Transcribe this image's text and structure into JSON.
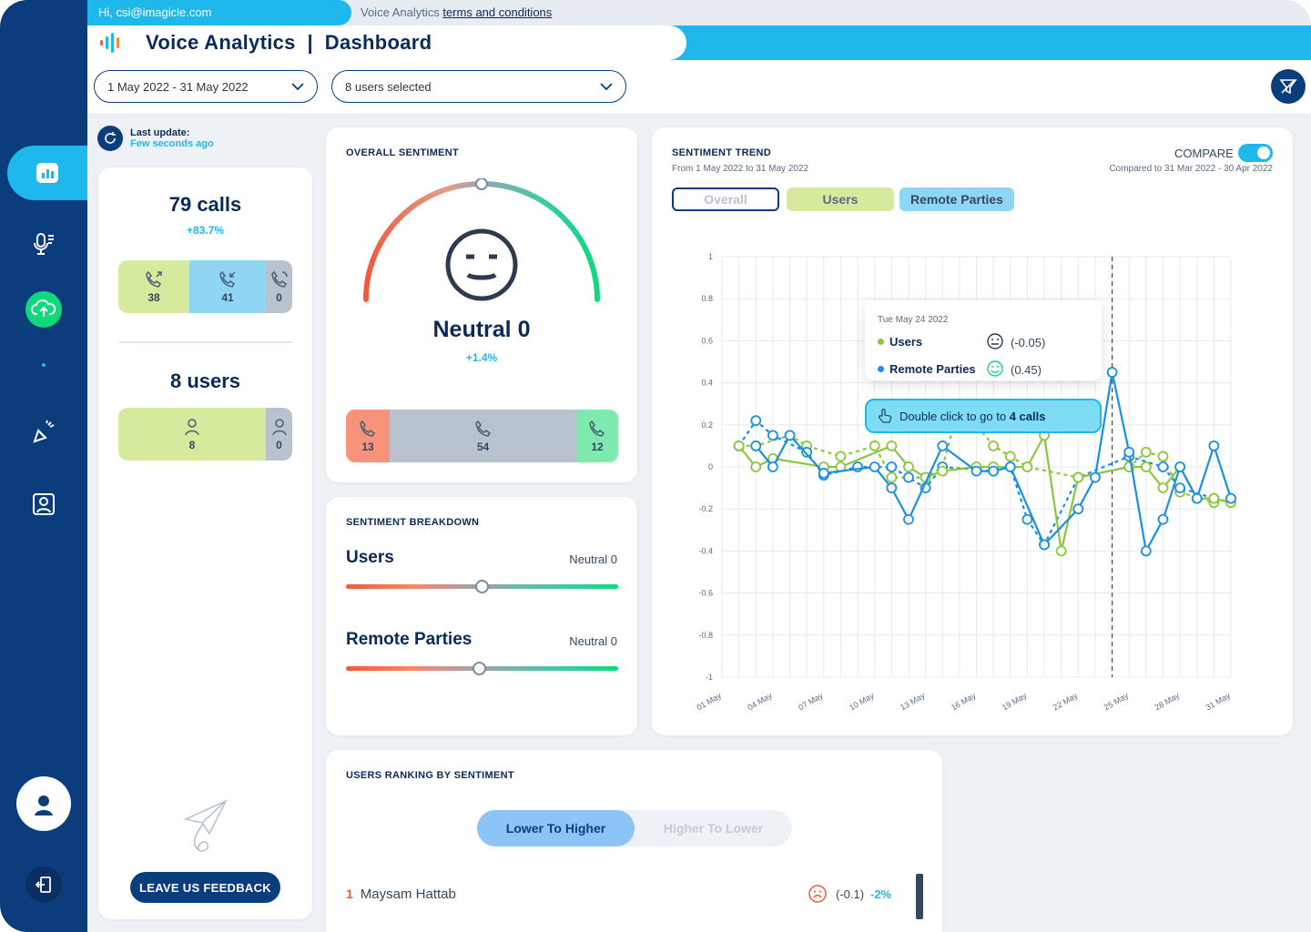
{
  "header": {
    "greeting": "Hi, csi@imagicle.com",
    "terms_prefix": "Voice Analytics ",
    "terms_link": "terms and conditions",
    "title": "Voice Analytics  |  Dashboard"
  },
  "filters": {
    "date_range": "1 May 2022 - 31 May 2022",
    "users": "8 users selected"
  },
  "sidebar": {
    "items": [
      {
        "name": "dashboard",
        "icon": "bar-chart-icon",
        "active": true
      },
      {
        "name": "transcriptions",
        "icon": "mic-list-icon"
      },
      {
        "name": "upload",
        "icon": "cloud-upload-icon"
      },
      {
        "name": "alerts",
        "icon": "megaphone-icon"
      },
      {
        "name": "contacts",
        "icon": "contact-card-icon"
      }
    ]
  },
  "summary": {
    "last_update_label": "Last update:",
    "last_update_value": "Few seconds ago",
    "calls_total": "79 calls",
    "calls_delta": "+83.7%",
    "calls_outgoing": "38",
    "calls_incoming": "41",
    "calls_other": "0",
    "users_total": "8 users",
    "users_active": "8",
    "users_inactive": "0",
    "feedback_label": "LEAVE US FEEDBACK"
  },
  "overall": {
    "title": "OVERALL SENTIMENT",
    "label": "Neutral 0",
    "delta": "+1.4%",
    "gauge_value": 0,
    "negative": "13",
    "neutral": "54",
    "positive": "12"
  },
  "breakdown": {
    "title": "SENTIMENT BREAKDOWN",
    "rows": [
      {
        "name": "Users",
        "value_label": "Neutral 0",
        "value": 0
      },
      {
        "name": "Remote Parties",
        "value_label": "Neutral 0",
        "value": -0.02
      }
    ]
  },
  "trend": {
    "title": "SENTIMENT TREND",
    "subtitle": "From 1 May 2022 to 31 May 2022",
    "compare_label": "COMPARE",
    "compare_sub": "Compared to 31 Mar 2022 - 30 Apr 2022",
    "tabs": [
      "Overall",
      "Users",
      "Remote Parties"
    ],
    "tooltip": {
      "date": "Tue May 24 2022",
      "users_label": "Users",
      "users_value": "(-0.05)",
      "remote_label": "Remote Parties",
      "remote_value": "(0.45)",
      "action_prefix": "Double click to go to ",
      "action_count": "4 calls"
    }
  },
  "chart_data": {
    "type": "line",
    "title": "SENTIMENT TREND",
    "ylim": [
      -1,
      1
    ],
    "yticks": [
      "1",
      "0.8",
      "0.6",
      "0.4",
      "0.2",
      "0",
      "-0.2",
      "-0.4",
      "-0.6",
      "-0.8",
      "-1"
    ],
    "x_labels": [
      "01 May",
      "04 May",
      "07 May",
      "10 May",
      "13 May",
      "16 May",
      "19 May",
      "22 May",
      "25 May",
      "28 May",
      "31 May"
    ],
    "x_count": 31,
    "highlight_day": 24,
    "series": [
      {
        "name": "Users",
        "color": "#8cc63f",
        "style": "solid",
        "x": [
          2,
          3,
          4,
          7,
          8,
          11,
          12,
          13,
          14,
          16,
          17,
          19,
          20,
          21,
          22,
          25,
          26,
          27,
          28,
          29,
          30,
          31
        ],
        "values": [
          0.1,
          0.0,
          0.04,
          0.0,
          0.0,
          0.1,
          0.0,
          -0.05,
          -0.02,
          0.0,
          0.0,
          0.0,
          0.15,
          -0.4,
          -0.05,
          0.0,
          0.0,
          -0.1,
          0.0,
          -0.15,
          -0.15,
          -0.17
        ]
      },
      {
        "name": "Remote Parties",
        "color": "#1a8fe3",
        "style": "solid",
        "x": [
          3,
          4,
          5,
          7,
          10,
          11,
          12,
          14,
          16,
          17,
          18,
          20,
          22,
          23,
          24,
          25,
          26,
          27,
          28,
          29,
          30,
          31
        ],
        "values": [
          0.1,
          0.0,
          0.15,
          -0.03,
          0.0,
          -0.1,
          -0.25,
          0.1,
          -0.02,
          -0.02,
          0.0,
          -0.37,
          -0.2,
          -0.05,
          0.45,
          0.07,
          -0.4,
          -0.25,
          0.0,
          -0.15,
          0.1,
          -0.15
        ]
      },
      {
        "name": "Users (compare)",
        "color": "#8cc63f",
        "style": "dashed",
        "x": [
          2,
          3,
          5,
          6,
          8,
          10,
          11,
          13,
          14,
          15,
          17,
          18,
          19,
          22,
          25,
          26,
          27,
          28,
          30,
          31
        ],
        "values": [
          0.1,
          0.1,
          0.15,
          0.1,
          0.05,
          0.1,
          -0.05,
          -0.05,
          0.0,
          0.3,
          0.1,
          0.05,
          0.0,
          -0.05,
          0.0,
          0.07,
          0.05,
          -0.12,
          -0.17,
          -0.15
        ]
      },
      {
        "name": "Remote Parties (compare)",
        "color": "#1a8fe3",
        "style": "dashed",
        "x": [
          2,
          3,
          4,
          6,
          7,
          9,
          11,
          12,
          13,
          14,
          17,
          18,
          19,
          20,
          22,
          25,
          27,
          28,
          30
        ],
        "values": [
          0.1,
          0.22,
          0.15,
          0.07,
          -0.04,
          0.0,
          0.0,
          -0.05,
          -0.1,
          0.0,
          -0.02,
          0.0,
          -0.25,
          -0.37,
          -0.05,
          0.05,
          0.0,
          -0.1,
          -0.15
        ]
      }
    ]
  },
  "ranking": {
    "title": "USERS RANKING BY SENTIMENT",
    "sort_active": "Lower To Higher",
    "sort_inactive": "Higher To Lower",
    "rows": [
      {
        "rank": "1",
        "name": "Maysam Hattab",
        "score": "(-0.1)",
        "delta": "-2%"
      }
    ]
  }
}
